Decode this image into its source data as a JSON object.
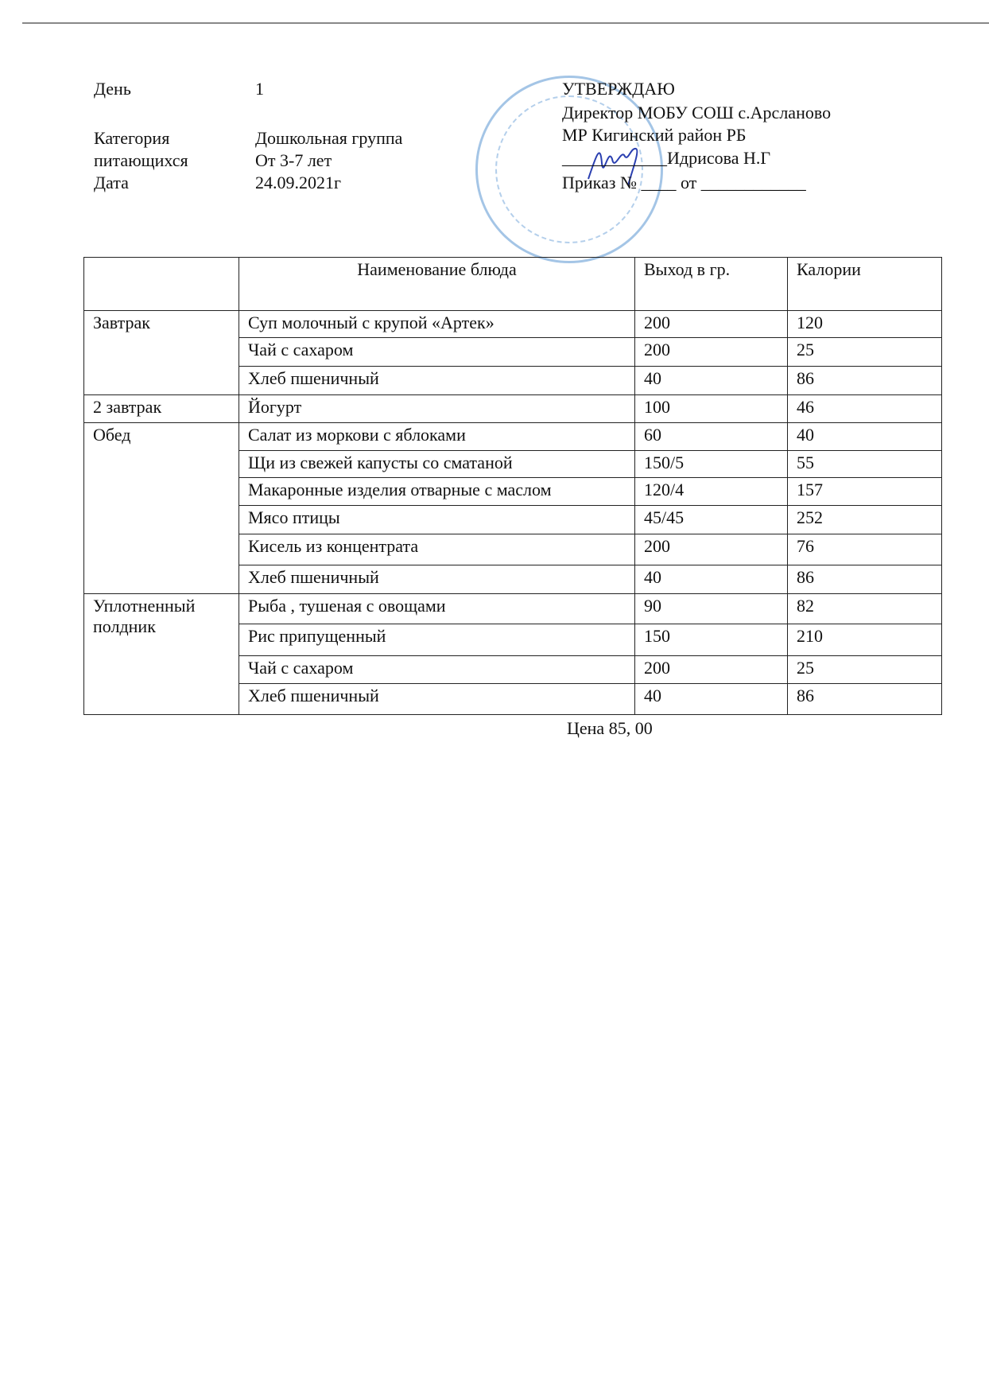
{
  "header_left": {
    "day_label": "День",
    "day_value": "1",
    "category_label_1": "Категория",
    "category_label_2": "питающихся",
    "category_value_1": "Дошкольная группа",
    "category_value_2": "От 3-7 лет",
    "date_label": "Дата",
    "date_value": "24.09.2021г"
  },
  "approval": {
    "title": "УТВЕРЖДАЮ",
    "line1": "Директор МОБУ СОШ с.Арсланово",
    "line2": "МР Кигинский район РБ",
    "line3": "____________Идрисова Н.Г",
    "line4": "Приказ № ____ от ____________"
  },
  "stamp_color": "#5a96d2",
  "table": {
    "headers": [
      "",
      "Наименование блюда",
      "Выход в гр.",
      "Калории"
    ],
    "groups": [
      {
        "meal": "Завтрак",
        "rows": [
          [
            "Суп молочный с крупой «Артек»",
            "200",
            "120"
          ],
          [
            "Чай с сахаром",
            "200",
            "25"
          ],
          [
            "Хлеб пшеничный",
            "40",
            "86"
          ]
        ]
      },
      {
        "meal": "2 завтрак",
        "rows": [
          [
            "Йогурт",
            "100",
            "46"
          ]
        ]
      },
      {
        "meal": "Обед",
        "rows": [
          [
            "Салат из моркови с яблоками",
            "60",
            "40"
          ],
          [
            "Щи из свежей капусты со сматаной",
            "150/5",
            "55"
          ],
          [
            "Макаронные изделия   отварные с маслом",
            "120/4",
            "157"
          ],
          [
            "Мясо птицы",
            "45/45",
            "252"
          ],
          [
            "Кисель из концентрата",
            "200",
            "76"
          ],
          [
            "Хлеб пшеничный",
            "40",
            "86"
          ]
        ]
      },
      {
        "meal": "Уплотненный\nполдник",
        "rows": [
          [
            "Рыба , тушеная с овощами",
            "90",
            "82"
          ],
          [
            "Рис припущенный",
            "150",
            "210"
          ],
          [
            "Чай с сахаром",
            "200",
            "25"
          ],
          [
            "Хлеб пшеничный",
            "40",
            "86"
          ]
        ]
      }
    ]
  },
  "price": "Цена  85, 00"
}
